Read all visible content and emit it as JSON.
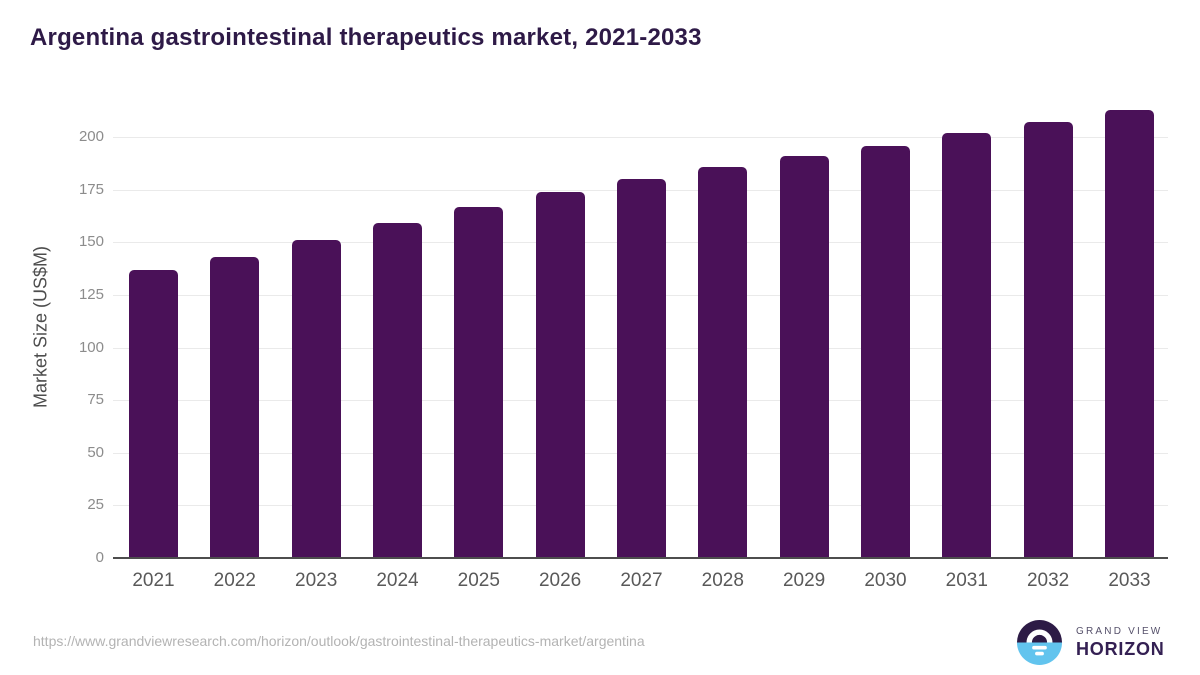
{
  "chart_data": {
    "type": "bar",
    "title": "Argentina gastrointestinal therapeutics market, 2021-2033",
    "categories": [
      "2021",
      "2022",
      "2023",
      "2024",
      "2025",
      "2026",
      "2027",
      "2028",
      "2029",
      "2030",
      "2031",
      "2032",
      "2033"
    ],
    "values": [
      137,
      143,
      151,
      159,
      167,
      174,
      180,
      186,
      191,
      196,
      202,
      207,
      213
    ],
    "xlabel": "",
    "ylabel": "Market Size (US$M)",
    "yticks": [
      0,
      25,
      50,
      75,
      100,
      125,
      150,
      175,
      200
    ],
    "ylim": [
      0,
      220
    ],
    "grid": "horizontal-only",
    "legend": "none",
    "bar_color": "#4A1158"
  },
  "colors": {
    "title_text": "#2E1A47",
    "bar": "#4A1158",
    "gridline": "#EAEAEA",
    "axis_line": "#4D4D4D",
    "y_tick_text": "#8C8C8C",
    "x_tick_text": "#595959",
    "url_text": "#B3B3B3",
    "logo_purple": "#2D1B46",
    "logo_blue": "#62C4EE"
  },
  "footer": {
    "source_url": "https://www.grandviewresearch.com/horizon/outlook/gastrointestinal-therapeutics-market/argentina",
    "logo": {
      "line1": "GRAND VIEW",
      "line2": "HORIZON"
    }
  }
}
